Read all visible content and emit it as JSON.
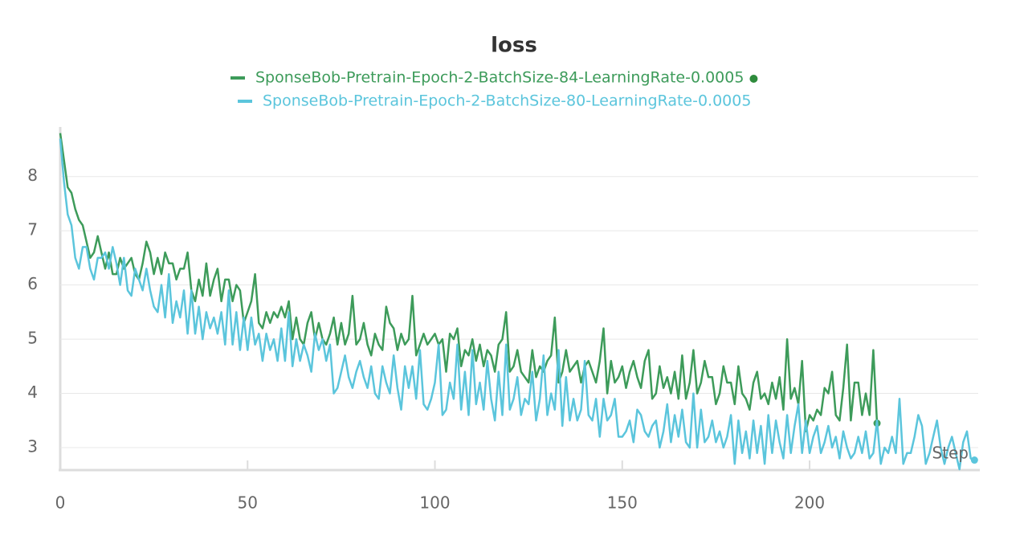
{
  "chart_data": {
    "type": "line",
    "title": "loss",
    "x_label": "Step",
    "x": [
      0,
      1,
      2,
      3,
      4,
      5,
      6,
      7,
      8,
      9,
      10,
      11,
      12,
      13,
      14,
      15,
      16,
      17,
      18,
      19,
      20,
      21,
      22,
      23,
      24,
      25,
      26,
      27,
      28,
      29,
      30,
      31,
      32,
      33,
      34,
      35,
      36,
      37,
      38,
      39,
      40,
      41,
      42,
      43,
      44,
      45,
      46,
      47,
      48,
      49,
      50,
      51,
      52,
      53,
      54,
      55,
      56,
      57,
      58,
      59,
      60,
      61,
      62,
      63,
      64,
      65,
      66,
      67,
      68,
      69,
      70,
      71,
      72,
      73,
      74,
      75,
      76,
      77,
      78,
      79,
      80,
      81,
      82,
      83,
      84,
      85,
      86,
      87,
      88,
      89,
      90,
      91,
      92,
      93,
      94,
      95,
      96,
      97,
      98,
      99,
      100,
      101,
      102,
      103,
      104,
      105,
      106,
      107,
      108,
      109,
      110,
      111,
      112,
      113,
      114,
      115,
      116,
      117,
      118,
      119,
      120,
      121,
      122,
      123,
      124,
      125,
      126,
      127,
      128,
      129,
      130,
      131,
      132,
      133,
      134,
      135,
      136,
      137,
      138,
      139,
      140,
      141,
      142,
      143,
      144,
      145,
      146,
      147,
      148,
      149,
      150,
      151,
      152,
      153,
      154,
      155,
      156,
      157,
      158,
      159,
      160,
      161,
      162,
      163,
      164,
      165,
      166,
      167,
      168,
      169,
      170,
      171,
      172,
      173,
      174,
      175,
      176,
      177,
      178,
      179,
      180,
      181,
      182,
      183,
      184,
      185,
      186,
      187,
      188,
      189,
      190,
      191,
      192,
      193,
      194,
      195,
      196,
      197,
      198,
      199,
      200,
      201,
      202,
      203,
      204,
      205,
      206,
      207,
      208,
      209,
      210,
      211,
      212,
      213,
      214,
      215,
      216,
      217,
      218,
      219,
      220,
      221,
      222,
      223,
      224,
      225,
      226,
      227,
      228,
      229,
      230,
      231,
      232,
      233,
      234,
      235,
      236,
      237,
      238,
      239,
      240,
      241,
      242,
      243,
      244
    ],
    "series": [
      {
        "name": "SponseBob-Pretrain-Epoch-2-BatchSize-84-LearningRate-0.0005",
        "color": "#3d9b5a",
        "values": [
          8.8,
          8.3,
          7.8,
          7.7,
          7.4,
          7.2,
          7.1,
          6.8,
          6.5,
          6.6,
          6.9,
          6.6,
          6.3,
          6.6,
          6.2,
          6.2,
          6.5,
          6.3,
          6.4,
          6.5,
          6.2,
          6.1,
          6.4,
          6.8,
          6.6,
          6.2,
          6.5,
          6.2,
          6.6,
          6.4,
          6.4,
          6.1,
          6.3,
          6.3,
          6.6,
          5.9,
          5.7,
          6.1,
          5.8,
          6.4,
          5.8,
          6.1,
          6.3,
          5.7,
          6.1,
          6.1,
          5.7,
          6.0,
          5.9,
          5.3,
          5.5,
          5.7,
          6.2,
          5.3,
          5.2,
          5.5,
          5.3,
          5.5,
          5.4,
          5.6,
          5.4,
          5.7,
          5.0,
          5.4,
          5.0,
          4.9,
          5.3,
          5.5,
          5.0,
          5.3,
          5.0,
          4.9,
          5.1,
          5.4,
          4.9,
          5.3,
          4.9,
          5.1,
          5.8,
          4.9,
          5.0,
          5.3,
          4.9,
          4.7,
          5.1,
          4.9,
          4.8,
          5.6,
          5.3,
          5.2,
          4.8,
          5.1,
          4.9,
          5.0,
          5.8,
          4.7,
          4.9,
          5.1,
          4.9,
          5.0,
          5.1,
          4.9,
          5.0,
          4.4,
          5.1,
          5.0,
          5.2,
          4.5,
          4.8,
          4.7,
          5.0,
          4.6,
          4.9,
          4.5,
          4.8,
          4.7,
          4.4,
          4.9,
          5.0,
          5.5,
          4.4,
          4.5,
          4.8,
          4.4,
          4.3,
          4.2,
          4.8,
          4.3,
          4.5,
          4.4,
          4.6,
          4.7,
          5.4,
          4.2,
          4.4,
          4.8,
          4.4,
          4.5,
          4.6,
          4.2,
          4.5,
          4.6,
          4.4,
          4.2,
          4.6,
          5.2,
          4.0,
          4.6,
          4.2,
          4.3,
          4.5,
          4.1,
          4.4,
          4.6,
          4.3,
          4.1,
          4.6,
          4.8,
          3.9,
          4.0,
          4.5,
          4.1,
          4.3,
          4.0,
          4.4,
          3.9,
          4.7,
          3.9,
          4.2,
          4.8,
          4.0,
          4.2,
          4.6,
          4.3,
          4.3,
          3.8,
          4.0,
          4.5,
          4.2,
          4.2,
          3.8,
          4.5,
          4.0,
          3.9,
          3.7,
          4.2,
          4.4,
          3.9,
          4.0,
          3.8,
          4.2,
          3.9,
          4.3,
          3.7,
          5.0,
          3.9,
          4.1,
          3.8,
          4.6,
          3.3,
          3.6,
          3.5,
          3.7,
          3.6,
          4.1,
          4.0,
          4.4,
          3.6,
          3.5,
          4.1,
          4.9,
          3.5,
          4.2,
          4.2,
          3.6,
          4.0,
          3.6,
          4.8,
          3.45,
          null,
          null,
          null,
          null,
          null,
          null,
          null,
          null,
          null,
          null,
          null,
          null,
          null,
          null,
          null,
          null,
          null,
          null,
          null,
          null,
          null,
          null,
          null,
          null,
          null,
          null
        ]
      },
      {
        "name": "SponseBob-Pretrain-Epoch-2-BatchSize-80-LearningRate-0.0005",
        "color": "#5bc5dc",
        "values": [
          8.7,
          7.9,
          7.3,
          7.1,
          6.5,
          6.3,
          6.7,
          6.7,
          6.3,
          6.1,
          6.5,
          6.5,
          6.6,
          6.3,
          6.7,
          6.4,
          6.0,
          6.5,
          5.9,
          5.8,
          6.3,
          6.1,
          5.9,
          6.3,
          5.9,
          5.6,
          5.5,
          6.0,
          5.4,
          6.2,
          5.3,
          5.7,
          5.4,
          5.9,
          5.1,
          5.9,
          5.1,
          5.6,
          5.0,
          5.5,
          5.2,
          5.4,
          5.1,
          5.5,
          4.9,
          5.9,
          4.9,
          5.5,
          4.8,
          5.4,
          4.8,
          5.4,
          4.9,
          5.1,
          4.6,
          5.1,
          4.8,
          5.0,
          4.6,
          5.2,
          4.6,
          5.5,
          4.5,
          5.0,
          4.6,
          4.9,
          4.7,
          4.4,
          5.1,
          4.8,
          5.0,
          4.6,
          4.9,
          4.0,
          4.1,
          4.4,
          4.7,
          4.3,
          4.1,
          4.4,
          4.6,
          4.3,
          4.1,
          4.5,
          4.0,
          3.9,
          4.5,
          4.2,
          4.0,
          4.7,
          4.1,
          3.7,
          4.5,
          4.1,
          4.5,
          3.9,
          4.8,
          3.8,
          3.7,
          3.9,
          4.2,
          4.9,
          3.6,
          3.7,
          4.2,
          3.9,
          4.9,
          3.7,
          4.4,
          3.6,
          4.8,
          3.8,
          4.2,
          3.7,
          4.6,
          3.9,
          3.5,
          4.4,
          3.6,
          4.9,
          3.7,
          3.9,
          4.3,
          3.6,
          3.9,
          3.8,
          4.4,
          3.5,
          3.9,
          4.7,
          3.6,
          4.0,
          3.7,
          4.8,
          3.4,
          4.3,
          3.5,
          3.9,
          3.5,
          3.7,
          4.6,
          3.6,
          3.5,
          3.9,
          3.2,
          3.9,
          3.5,
          3.6,
          3.9,
          3.2,
          3.2,
          3.3,
          3.5,
          3.1,
          3.7,
          3.6,
          3.3,
          3.2,
          3.4,
          3.5,
          3.0,
          3.3,
          3.8,
          3.1,
          3.6,
          3.2,
          3.7,
          3.1,
          3.0,
          4.0,
          3.0,
          3.7,
          3.1,
          3.2,
          3.5,
          3.1,
          3.3,
          3.0,
          3.2,
          3.6,
          2.7,
          3.5,
          2.9,
          3.3,
          2.8,
          3.5,
          2.9,
          3.4,
          2.7,
          3.6,
          2.9,
          3.5,
          3.1,
          2.8,
          3.6,
          2.9,
          3.4,
          3.8,
          2.9,
          3.5,
          2.9,
          3.2,
          3.4,
          2.9,
          3.1,
          3.4,
          3.0,
          3.2,
          2.8,
          3.3,
          3.0,
          2.8,
          2.9,
          3.2,
          2.9,
          3.3,
          2.8,
          2.9,
          3.5,
          2.7,
          3.0,
          2.9,
          3.2,
          2.9,
          3.9,
          2.7,
          2.9,
          2.9,
          3.2,
          3.6,
          3.4,
          2.7,
          2.9,
          3.2,
          3.5,
          3.0,
          2.7,
          3.0,
          3.2,
          2.9,
          2.6,
          3.1,
          3.3,
          2.8,
          2.77
        ]
      }
    ],
    "xlim": [
      0,
      245
    ],
    "xticks": [
      0,
      50,
      100,
      150,
      200
    ],
    "ylim": [
      2.6,
      8.9
    ],
    "yticks": [
      3,
      4,
      5,
      6,
      7,
      8
    ],
    "grid": true
  }
}
